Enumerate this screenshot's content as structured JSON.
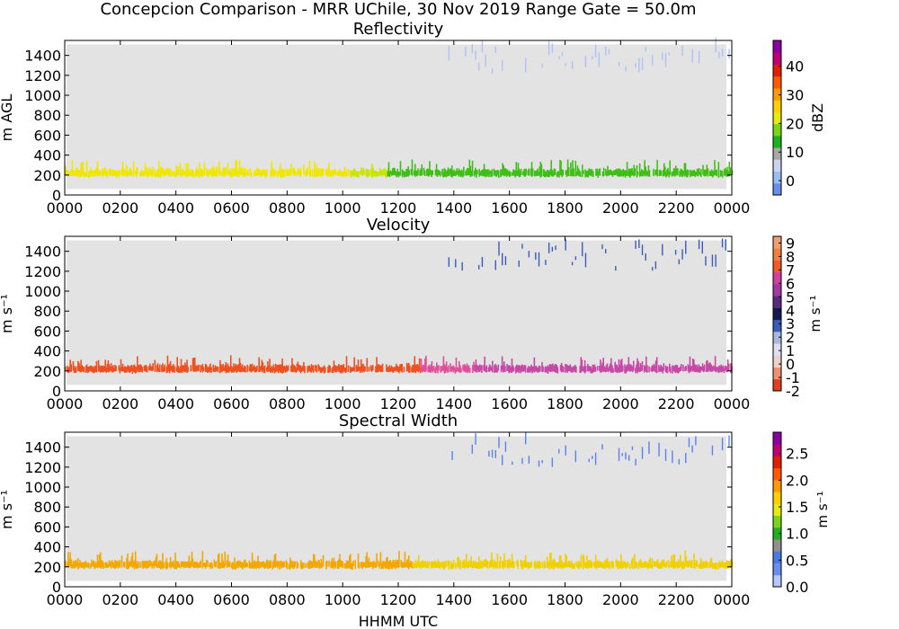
{
  "figure": {
    "suptitle": "Concepcion Comparison - MRR UChile, 30 Nov 2019 Range Gate = 50.0m",
    "xlabel": "HHMM UTC"
  },
  "chart_data": [
    {
      "type": "heatmap",
      "title": "Reflectivity",
      "ylabel": "m AGL",
      "xticks": [
        "0000",
        "0200",
        "0400",
        "0600",
        "0800",
        "1000",
        "1200",
        "1400",
        "1600",
        "1800",
        "2000",
        "2200",
        "0000"
      ],
      "yticks": [
        "0",
        "200",
        "400",
        "600",
        "800",
        "1000",
        "1200",
        "1400"
      ],
      "ylim": [
        0,
        1550
      ],
      "colorbar": {
        "label": "dBZ",
        "range": [
          -5,
          49
        ],
        "ticks": [
          "0",
          "10",
          "20",
          "30",
          "40"
        ],
        "colors": [
          "#6a8ef0",
          "#9bbcf5",
          "#c8d4ee",
          "#a8a8a8",
          "#20b020",
          "#7ad41a",
          "#e6ea12",
          "#ffd000",
          "#ff9a00",
          "#ff5a00",
          "#e02000",
          "#c00070",
          "#8a00a0"
        ]
      },
      "layers": [
        {
          "name": "low",
          "height_range": [
            140,
            390
          ],
          "color_segments": [
            {
              "start_hour": 0,
              "end_hour": 10.3,
              "color": "#f0e600"
            },
            {
              "start_hour": 10.3,
              "end_hour": 11.6,
              "color": "#c8e400"
            },
            {
              "start_hour": 11.6,
              "end_hour": 24,
              "color": "#3fbf16"
            }
          ]
        },
        {
          "name": "high",
          "height_range": [
            1200,
            1520
          ],
          "start_hour": 13.8,
          "end_hour": 24,
          "color": "#aec2f7"
        }
      ]
    },
    {
      "type": "heatmap",
      "title": "Velocity",
      "ylabel": "m s⁻¹",
      "xticks": [
        "0000",
        "0200",
        "0400",
        "0600",
        "0800",
        "1000",
        "1200",
        "1400",
        "1600",
        "1800",
        "2000",
        "2200",
        "0000"
      ],
      "yticks": [
        "0",
        "200",
        "400",
        "600",
        "800",
        "1000",
        "1200",
        "1400"
      ],
      "ylim": [
        0,
        1550
      ],
      "colorbar": {
        "label": "m s⁻¹",
        "range": [
          -2,
          9.5
        ],
        "ticks": [
          "-2",
          "-1",
          "0",
          "1",
          "2",
          "3",
          "4",
          "5",
          "6",
          "7",
          "8",
          "9"
        ],
        "colors": [
          "#e04020",
          "#f09070",
          "#f0d0c8",
          "#dde0ee",
          "#aab8dc",
          "#3b5cb8",
          "#161a50",
          "#5a2a80",
          "#a03aa0",
          "#d040a0",
          "#f05a2a",
          "#f08040",
          "#f0a070"
        ]
      },
      "layers": [
        {
          "name": "low",
          "height_range": [
            140,
            390
          ],
          "color_segments": [
            {
              "start_hour": 0,
              "end_hour": 12.8,
              "color": "#ee5020"
            },
            {
              "start_hour": 12.8,
              "end_hour": 14.7,
              "color": "#e0509a"
            },
            {
              "start_hour": 14.7,
              "end_hour": 24,
              "color": "#c848a8"
            }
          ]
        },
        {
          "name": "high",
          "height_range": [
            1200,
            1520
          ],
          "start_hour": 13.8,
          "end_hour": 24,
          "color": "#3c5cb8"
        }
      ]
    },
    {
      "type": "heatmap",
      "title": "Spectral Width",
      "ylabel": "m s⁻¹",
      "xticks": [
        "0000",
        "0200",
        "0400",
        "0600",
        "0800",
        "1000",
        "1200",
        "1400",
        "1600",
        "1800",
        "2000",
        "2200",
        "0000"
      ],
      "yticks": [
        "0",
        "200",
        "400",
        "600",
        "800",
        "1000",
        "1200",
        "1400"
      ],
      "ylim": [
        0,
        1550
      ],
      "colorbar": {
        "label": "m s⁻¹",
        "range": [
          0,
          2.9
        ],
        "ticks": [
          "0.0",
          "0.5",
          "1.0",
          "1.5",
          "2.0",
          "2.5"
        ],
        "colors": [
          "#b4c8fa",
          "#6a8ef0",
          "#4a7ae0",
          "#909090",
          "#20b020",
          "#7ad41a",
          "#e6ea12",
          "#ffd000",
          "#ff9a00",
          "#ff5a00",
          "#e02000",
          "#c00070",
          "#8a00a0"
        ]
      },
      "layers": [
        {
          "name": "low",
          "height_range": [
            140,
            390
          ],
          "color_segments": [
            {
              "start_hour": 0,
              "end_hour": 12.5,
              "color": "#f2a800"
            },
            {
              "start_hour": 12.5,
              "end_hour": 24,
              "color": "#f0d000"
            }
          ]
        },
        {
          "name": "high",
          "height_range": [
            1200,
            1520
          ],
          "start_hour": 13.8,
          "end_hour": 24,
          "color": "#5a82ec"
        }
      ]
    }
  ]
}
